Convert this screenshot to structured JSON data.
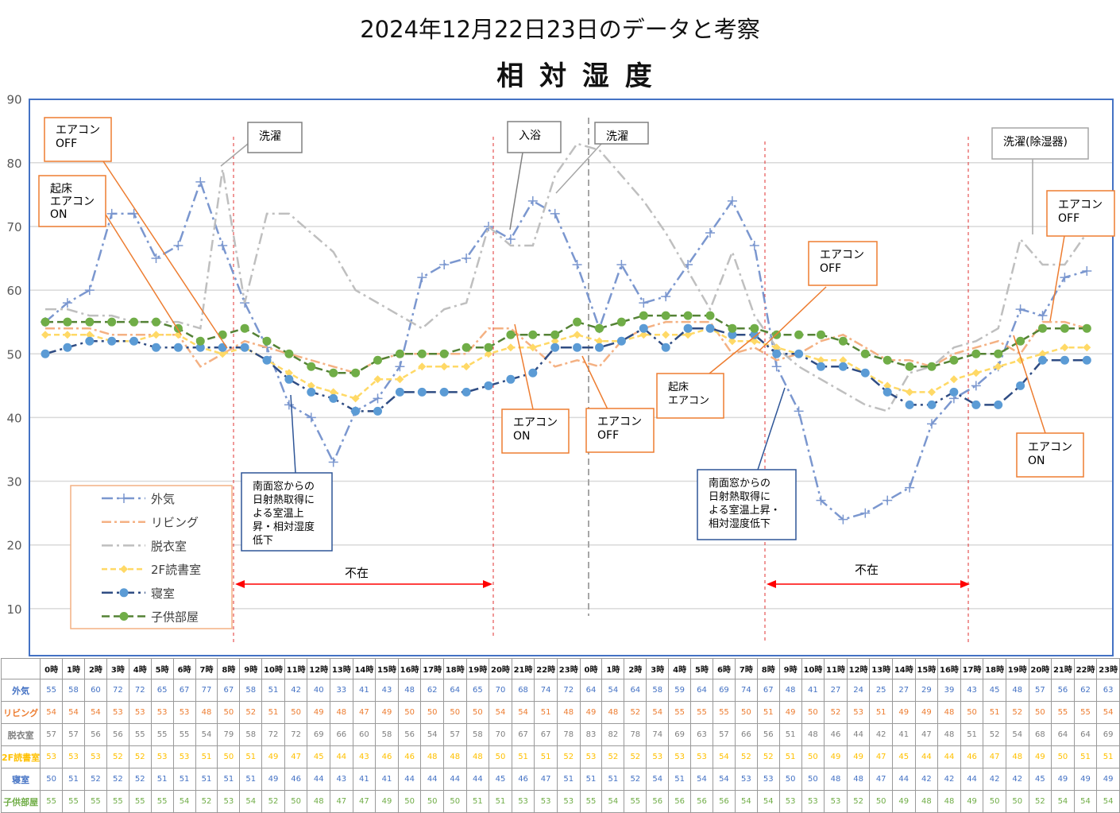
{
  "header_title": "2024年12月22日23日のデータと考察",
  "chart_data": {
    "type": "line",
    "title": "相 対 湿 度",
    "ylim": [
      0,
      90
    ],
    "yticks": [
      10,
      20,
      30,
      40,
      50,
      60,
      70,
      80,
      90
    ],
    "grid": true,
    "legend_position": "bottom-left",
    "x": [
      "0時",
      "1時",
      "2時",
      "3時",
      "4時",
      "5時",
      "6時",
      "7時",
      "8時",
      "9時",
      "10時",
      "11時",
      "12時",
      "13時",
      "14時",
      "15時",
      "16時",
      "17時",
      "18時",
      "19時",
      "20時",
      "21時",
      "22時",
      "23時",
      "0時",
      "1時",
      "2時",
      "3時",
      "4時",
      "5時",
      "6時",
      "7時",
      "8時",
      "9時",
      "10時",
      "11時",
      "12時",
      "13時",
      "14時",
      "15時",
      "16時",
      "17時",
      "18時",
      "19時",
      "20時",
      "21時",
      "22時",
      "23時"
    ],
    "series": [
      {
        "name": "外気",
        "color": "#7b97cf",
        "label_color": "#4472c4",
        "marker": "plus",
        "dash": "14 5 3 5",
        "values": [
          55,
          58,
          60,
          72,
          72,
          65,
          67,
          77,
          67,
          58,
          51,
          42,
          40,
          33,
          41,
          43,
          48,
          62,
          64,
          65,
          70,
          68,
          74,
          72,
          64,
          54,
          64,
          58,
          59,
          64,
          69,
          74,
          67,
          48,
          41,
          27,
          24,
          25,
          27,
          29,
          39,
          43,
          45,
          48,
          57,
          56,
          62,
          63
        ]
      },
      {
        "name": "リビング",
        "color": "#f4b183",
        "label_color": "#ed7d31",
        "marker": "none",
        "dash": "12 4 3 4",
        "values": [
          54,
          54,
          54,
          53,
          53,
          53,
          53,
          48,
          50,
          52,
          51,
          50,
          49,
          48,
          47,
          49,
          50,
          50,
          50,
          50,
          54,
          54,
          51,
          48,
          49,
          48,
          52,
          54,
          55,
          55,
          55,
          50,
          51,
          49,
          50,
          52,
          53,
          51,
          49,
          49,
          48,
          50,
          51,
          52,
          50,
          55,
          55,
          54
        ]
      },
      {
        "name": "脱衣室",
        "color": "#bfbfbf",
        "label_color": "#7f7f7f",
        "marker": "none",
        "dash": "14 5 3 5",
        "values": [
          57,
          57,
          56,
          56,
          55,
          55,
          55,
          54,
          79,
          58,
          72,
          72,
          69,
          66,
          60,
          58,
          56,
          54,
          57,
          58,
          70,
          67,
          67,
          78,
          83,
          82,
          78,
          74,
          69,
          63,
          57,
          66,
          56,
          51,
          48,
          46,
          44,
          42,
          41,
          47,
          48,
          51,
          52,
          54,
          68,
          64,
          64,
          69
        ]
      },
      {
        "name": "2F読書室",
        "color": "#ffd966",
        "label_color": "#ffc000",
        "marker": "diamond",
        "dash": "7 4",
        "values": [
          53,
          53,
          53,
          52,
          52,
          53,
          53,
          51,
          50,
          51,
          49,
          47,
          45,
          44,
          43,
          46,
          46,
          48,
          48,
          48,
          50,
          51,
          51,
          52,
          53,
          52,
          52,
          53,
          53,
          53,
          54,
          52,
          52,
          51,
          50,
          49,
          49,
          47,
          45,
          44,
          44,
          46,
          47,
          48,
          49,
          50,
          51,
          51
        ]
      },
      {
        "name": "寝室",
        "color": "#2f4c83",
        "label_color": "#4472c4",
        "marker": "circle",
        "marker_color": "#5b9bd5",
        "dash": "14 5 3 5",
        "values": [
          50,
          51,
          52,
          52,
          52,
          51,
          51,
          51,
          51,
          51,
          49,
          46,
          44,
          43,
          41,
          41,
          44,
          44,
          44,
          44,
          45,
          46,
          47,
          51,
          51,
          51,
          52,
          54,
          51,
          54,
          54,
          53,
          53,
          50,
          50,
          48,
          48,
          47,
          44,
          42,
          42,
          44,
          42,
          42,
          45,
          49,
          49,
          49
        ]
      },
      {
        "name": "子供部屋",
        "color": "#548235",
        "label_color": "#70ad47",
        "marker": "circle",
        "marker_color": "#70ad47",
        "dash": "10 5",
        "values": [
          55,
          55,
          55,
          55,
          55,
          55,
          54,
          52,
          53,
          54,
          52,
          50,
          48,
          47,
          47,
          49,
          50,
          50,
          50,
          51,
          51,
          53,
          53,
          53,
          55,
          54,
          55,
          56,
          56,
          56,
          56,
          54,
          54,
          53,
          53,
          53,
          52,
          50,
          49,
          48,
          48,
          49,
          50,
          50,
          52,
          54,
          54,
          54
        ]
      }
    ]
  },
  "absence_label": "不在",
  "annotations": {
    "aircon_off_1": "エアコン\nOFF",
    "wakeup_aircon_on": "起床\nエアコン\nON",
    "laundry_1": "洗濯",
    "bath": "入浴",
    "laundry_2": "洗濯",
    "laundry_dehumidifier": "洗濯(除湿器)",
    "aircon_off_right": "エアコン\nOFF",
    "aircon_off_mid": "エアコン\nOFF",
    "solar_gain_1": "南面窓からの\n日射熱取得に\nよる室温上\n昇・相対湿度\n低下",
    "aircon_on_mid": "エアコン\nON",
    "aircon_off_mid2": "エアコン\nOFF",
    "wakeup_aircon": "起床\nエアコン",
    "solar_gain_2": "南面窓からの\n日射熱取得に\nよる室温上昇・\n相対湿度低下",
    "aircon_on_right": "エアコン\nON"
  },
  "table": {
    "corner": "",
    "hours": [
      "0時",
      "1時",
      "2時",
      "3時",
      "4時",
      "5時",
      "6時",
      "7時",
      "8時",
      "9時",
      "10時",
      "11時",
      "12時",
      "13時",
      "14時",
      "15時",
      "16時",
      "17時",
      "18時",
      "19時",
      "20時",
      "21時",
      "22時",
      "23時",
      "0時",
      "1時",
      "2時",
      "3時",
      "4時",
      "5時",
      "6時",
      "7時",
      "8時",
      "9時",
      "10時",
      "11時",
      "12時",
      "13時",
      "14時",
      "15時",
      "16時",
      "17時",
      "18時",
      "19時",
      "20時",
      "21時",
      "22時",
      "23時"
    ]
  }
}
